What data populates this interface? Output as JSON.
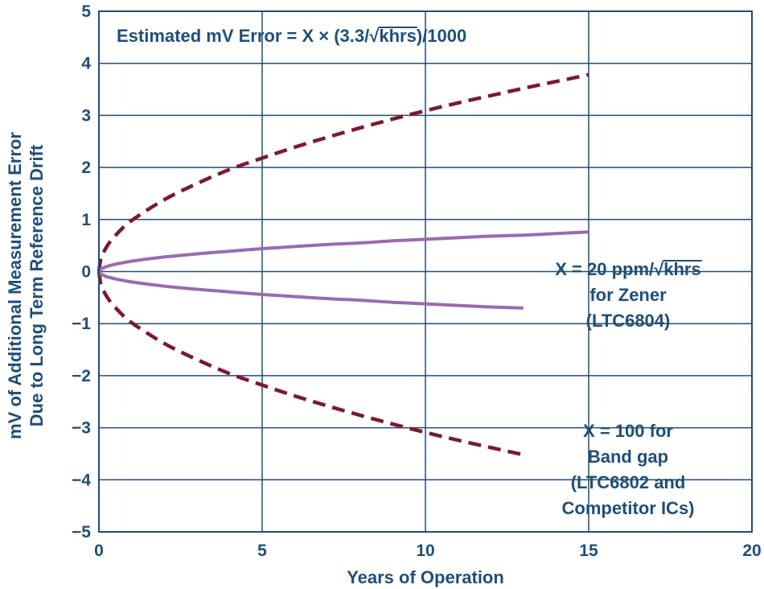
{
  "chart_data": {
    "type": "line",
    "title": "",
    "xlabel": "Years of Operation",
    "ylabel_lines": [
      "mV of Additional Measurement Error",
      "Due to Long Term Reference Drift"
    ],
    "xlim": [
      0,
      20
    ],
    "ylim": [
      -5,
      5
    ],
    "x_ticks": [
      "0",
      "5",
      "10",
      "15",
      "20"
    ],
    "y_ticks": [
      "5",
      "4",
      "3",
      "2",
      "1",
      "0",
      "−1",
      "−2",
      "−3",
      "−4",
      "−5"
    ],
    "grid": true,
    "formula_parts": {
      "before": "Estimated mV Error = X × (3.3/",
      "radical": "√",
      "radicand": "khrs",
      "after": ")/1000"
    },
    "zener_label": {
      "line1_before": "X = 20 ppm/",
      "line1_radical": "√",
      "line1_radicand": "khrs",
      "line2": "for Zener",
      "line3": "(LTC6804)"
    },
    "bandgap_label": {
      "line1": "X = 100 for",
      "line2": "Band gap",
      "line3": "(LTC6802 and",
      "line4": "Competitor ICs)"
    },
    "series": [
      {
        "id": "bandgap-upper",
        "style": "dashed",
        "color": "#7b1931",
        "x": [
          0,
          0.05,
          0.1,
          0.25,
          0.5,
          1,
          2,
          3,
          4,
          5,
          6,
          7,
          8,
          9,
          10,
          11,
          12,
          13,
          14,
          15
        ],
        "y": [
          0,
          0.22,
          0.31,
          0.49,
          0.69,
          0.98,
          1.38,
          1.69,
          1.96,
          2.18,
          2.39,
          2.58,
          2.76,
          2.93,
          3.09,
          3.24,
          3.38,
          3.52,
          3.65,
          3.78
        ]
      },
      {
        "id": "bandgap-lower",
        "style": "dashed",
        "color": "#7b1931",
        "x": [
          0,
          0.05,
          0.1,
          0.25,
          0.5,
          1,
          2,
          3,
          4,
          5,
          6,
          7,
          8,
          9,
          10,
          11,
          12,
          13
        ],
        "y": [
          0,
          -0.22,
          -0.31,
          -0.49,
          -0.69,
          -0.98,
          -1.38,
          -1.69,
          -1.96,
          -2.18,
          -2.39,
          -2.58,
          -2.76,
          -2.93,
          -3.09,
          -3.24,
          -3.38,
          -3.52
        ]
      },
      {
        "id": "zener-upper",
        "style": "solid",
        "color": "#9b69b3",
        "x": [
          0,
          0.05,
          0.1,
          0.25,
          0.5,
          1,
          2,
          3,
          4,
          5,
          6,
          7,
          8,
          9,
          10,
          11,
          12,
          13,
          14,
          15
        ],
        "y": [
          0,
          0.04,
          0.06,
          0.1,
          0.14,
          0.2,
          0.28,
          0.34,
          0.39,
          0.44,
          0.48,
          0.52,
          0.55,
          0.59,
          0.62,
          0.65,
          0.68,
          0.7,
          0.73,
          0.76
        ]
      },
      {
        "id": "zener-lower",
        "style": "solid",
        "color": "#9b69b3",
        "x": [
          0,
          0.05,
          0.1,
          0.25,
          0.5,
          1,
          2,
          3,
          4,
          5,
          6,
          7,
          8,
          9,
          10,
          11,
          12,
          13
        ],
        "y": [
          0,
          -0.04,
          -0.06,
          -0.1,
          -0.14,
          -0.2,
          -0.28,
          -0.34,
          -0.39,
          -0.44,
          -0.48,
          -0.52,
          -0.55,
          -0.59,
          -0.62,
          -0.65,
          -0.68,
          -0.7
        ]
      }
    ]
  }
}
